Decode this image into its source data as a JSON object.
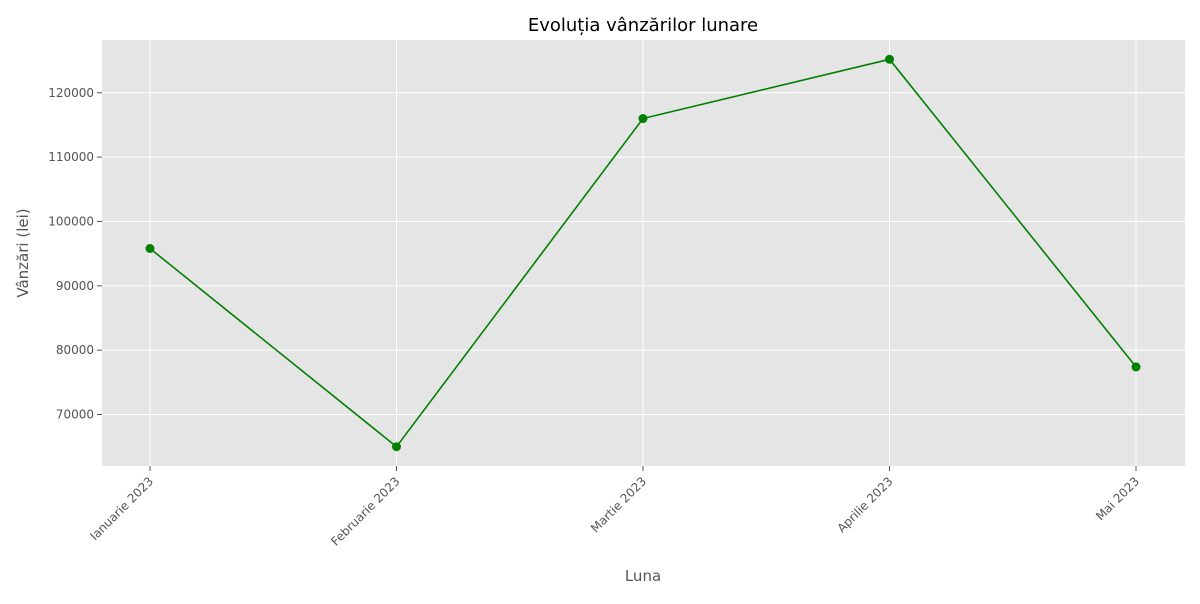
{
  "chart_data": {
    "type": "line",
    "title": "Evoluția vânzărilor lunare",
    "xlabel": "Luna",
    "ylabel": "Vânzări (lei)",
    "categories": [
      "Ianuarie 2023",
      "Februarie 2023",
      "Martie 2023",
      "Aprilie 2023",
      "Mai 2023"
    ],
    "series": [
      {
        "values": [
          95800,
          65000,
          116000,
          125200,
          77400
        ],
        "color": "#008000",
        "marker": "circle"
      }
    ],
    "ylim": [
      62000,
      128200
    ],
    "yticks": [
      70000,
      80000,
      90000,
      100000,
      110000,
      120000
    ],
    "ytick_labels": [
      "70000",
      "80000",
      "90000",
      "100000",
      "110000",
      "120000"
    ],
    "grid": true,
    "background_color": "#e5e5e5"
  }
}
